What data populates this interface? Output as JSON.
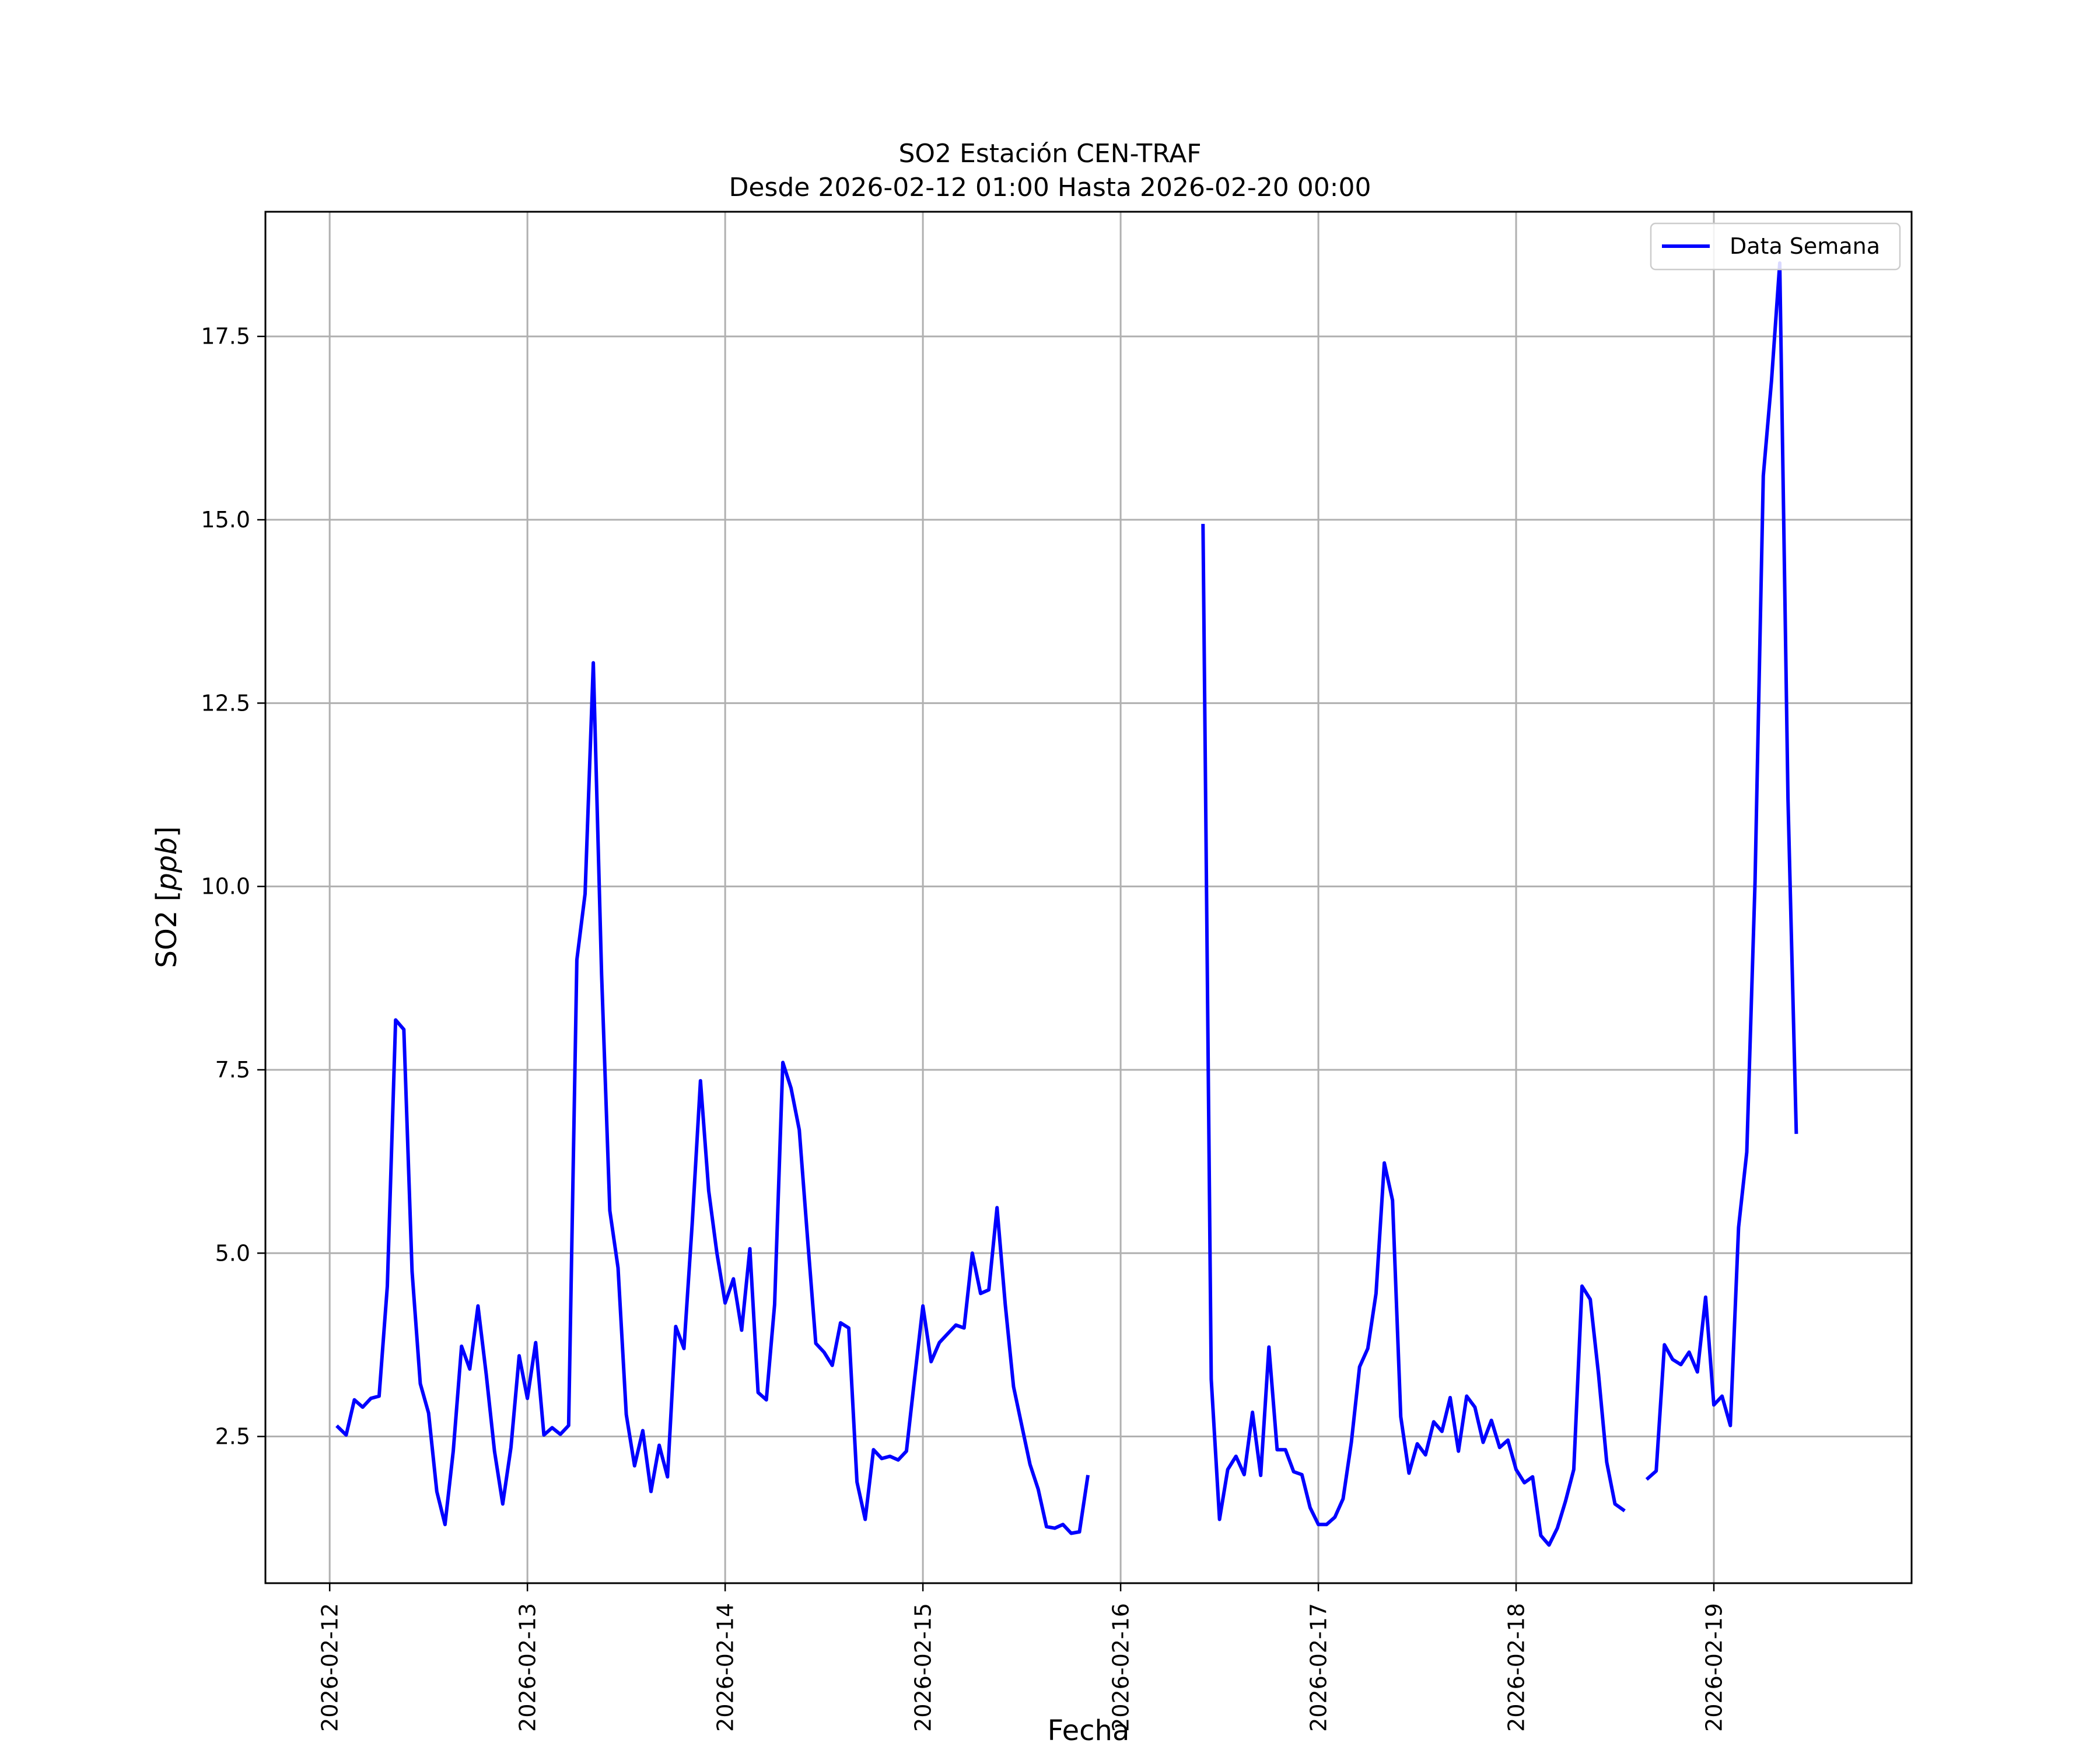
{
  "chart_data": {
    "type": "line",
    "title": "SO2 Estación CEN-TRAF",
    "subtitle": "Desde 2026-02-12 01:00 Hasta 2026-02-20 00:00",
    "xlabel": "Fecha",
    "ylabel_prefix": "SO2 [",
    "ylabel_unit": "ppb",
    "ylabel_suffix": "]",
    "x_ticks": [
      "2026-02-12",
      "2026-02-13",
      "2026-02-14",
      "2026-02-15",
      "2026-02-16",
      "2026-02-17",
      "2026-02-18",
      "2026-02-19"
    ],
    "y_ticks": [
      "2.5",
      "5.0",
      "7.5",
      "10.0",
      "12.5",
      "15.0",
      "17.5"
    ],
    "xlim": [
      "2026-02-11 16:12",
      "2026-02-20 00:00"
    ],
    "ylim": [
      0.5,
      19.2
    ],
    "grid": true,
    "legend": "top-right",
    "series": [
      {
        "name": "Data Semana",
        "color": "#0000ff",
        "segments": [
          [
            [
              "2026-02-12 01:00",
              2.63
            ],
            [
              "2026-02-12 02:00",
              2.52
            ],
            [
              "2026-02-12 03:00",
              3.0
            ],
            [
              "2026-02-12 04:00",
              2.9
            ],
            [
              "2026-02-12 05:00",
              3.02
            ],
            [
              "2026-02-12 06:00",
              3.05
            ],
            [
              "2026-02-12 07:00",
              4.55
            ],
            [
              "2026-02-12 08:00",
              8.18
            ],
            [
              "2026-02-12 09:00",
              8.05
            ],
            [
              "2026-02-12 10:00",
              4.75
            ],
            [
              "2026-02-12 11:00",
              3.22
            ],
            [
              "2026-02-12 12:00",
              2.82
            ],
            [
              "2026-02-12 13:00",
              1.75
            ],
            [
              "2026-02-12 14:00",
              1.3
            ],
            [
              "2026-02-12 15:00",
              2.3
            ],
            [
              "2026-02-12 16:00",
              3.73
            ],
            [
              "2026-02-12 17:00",
              3.42
            ],
            [
              "2026-02-12 18:00",
              4.28
            ],
            [
              "2026-02-12 19:00",
              3.35
            ],
            [
              "2026-02-12 20:00",
              2.3
            ],
            [
              "2026-02-12 21:00",
              1.58
            ],
            [
              "2026-02-12 22:00",
              2.35
            ],
            [
              "2026-02-12 23:00",
              3.6
            ],
            [
              "2026-02-13 00:00",
              3.02
            ],
            [
              "2026-02-13 01:00",
              3.78
            ],
            [
              "2026-02-13 02:00",
              2.52
            ],
            [
              "2026-02-13 03:00",
              2.62
            ],
            [
              "2026-02-13 04:00",
              2.53
            ],
            [
              "2026-02-13 05:00",
              2.65
            ],
            [
              "2026-02-13 06:00",
              9.0
            ],
            [
              "2026-02-13 07:00",
              9.9
            ],
            [
              "2026-02-13 08:00",
              13.05
            ],
            [
              "2026-02-13 09:00",
              8.8
            ],
            [
              "2026-02-13 10:00",
              5.58
            ],
            [
              "2026-02-13 11:00",
              4.8
            ],
            [
              "2026-02-13 12:00",
              2.8
            ],
            [
              "2026-02-13 13:00",
              2.1
            ],
            [
              "2026-02-13 14:00",
              2.58
            ],
            [
              "2026-02-13 15:00",
              1.75
            ],
            [
              "2026-02-13 16:00",
              2.38
            ],
            [
              "2026-02-13 17:00",
              1.95
            ],
            [
              "2026-02-13 18:00",
              4.0
            ],
            [
              "2026-02-13 19:00",
              3.7
            ],
            [
              "2026-02-13 20:00",
              5.4
            ],
            [
              "2026-02-13 21:00",
              7.35
            ],
            [
              "2026-02-13 22:00",
              5.85
            ],
            [
              "2026-02-13 23:00",
              5.0
            ],
            [
              "2026-02-14 00:00",
              4.32
            ],
            [
              "2026-02-14 01:00",
              4.65
            ],
            [
              "2026-02-14 02:00",
              3.95
            ],
            [
              "2026-02-14 03:00",
              5.06
            ],
            [
              "2026-02-14 04:00",
              3.1
            ],
            [
              "2026-02-14 05:00",
              3.0
            ],
            [
              "2026-02-14 06:00",
              4.3
            ],
            [
              "2026-02-14 07:00",
              7.6
            ],
            [
              "2026-02-14 08:00",
              7.25
            ],
            [
              "2026-02-14 09:00",
              6.68
            ],
            [
              "2026-02-14 10:00",
              5.2
            ],
            [
              "2026-02-14 11:00",
              3.77
            ],
            [
              "2026-02-14 12:00",
              3.65
            ],
            [
              "2026-02-14 13:00",
              3.47
            ],
            [
              "2026-02-14 14:00",
              4.05
            ],
            [
              "2026-02-14 15:00",
              3.98
            ],
            [
              "2026-02-14 16:00",
              1.88
            ],
            [
              "2026-02-14 17:00",
              1.37
            ],
            [
              "2026-02-14 18:00",
              2.32
            ],
            [
              "2026-02-14 19:00",
              2.2
            ],
            [
              "2026-02-14 20:00",
              2.23
            ],
            [
              "2026-02-14 21:00",
              2.18
            ],
            [
              "2026-02-14 22:00",
              2.3
            ],
            [
              "2026-02-14 23:00",
              3.3
            ],
            [
              "2026-02-15 00:00",
              4.28
            ],
            [
              "2026-02-15 01:00",
              3.52
            ],
            [
              "2026-02-15 02:00",
              3.78
            ],
            [
              "2026-02-15 03:00",
              3.9
            ],
            [
              "2026-02-15 04:00",
              4.02
            ],
            [
              "2026-02-15 05:00",
              3.98
            ],
            [
              "2026-02-15 06:00",
              5.0
            ],
            [
              "2026-02-15 07:00",
              4.45
            ],
            [
              "2026-02-15 08:00",
              4.5
            ],
            [
              "2026-02-15 09:00",
              5.62
            ],
            [
              "2026-02-15 10:00",
              4.3
            ],
            [
              "2026-02-15 11:00",
              3.18
            ],
            [
              "2026-02-15 12:00",
              2.65
            ],
            [
              "2026-02-15 13:00",
              2.12
            ],
            [
              "2026-02-15 14:00",
              1.78
            ],
            [
              "2026-02-15 15:00",
              1.27
            ],
            [
              "2026-02-15 16:00",
              1.25
            ],
            [
              "2026-02-15 17:00",
              1.3
            ],
            [
              "2026-02-15 18:00",
              1.18
            ],
            [
              "2026-02-15 19:00",
              1.2
            ],
            [
              "2026-02-15 20:00",
              1.95
            ]
          ],
          [
            [
              "2026-02-16 10:00",
              14.92
            ],
            [
              "2026-02-16 11:00",
              3.28
            ],
            [
              "2026-02-16 12:00",
              1.37
            ],
            [
              "2026-02-16 13:00",
              2.05
            ],
            [
              "2026-02-16 14:00",
              2.23
            ],
            [
              "2026-02-16 15:00",
              1.98
            ],
            [
              "2026-02-16 16:00",
              2.83
            ],
            [
              "2026-02-16 17:00",
              1.97
            ],
            [
              "2026-02-16 18:00",
              3.72
            ],
            [
              "2026-02-16 19:00",
              2.32
            ],
            [
              "2026-02-16 20:00",
              2.32
            ],
            [
              "2026-02-16 21:00",
              2.02
            ],
            [
              "2026-02-16 22:00",
              1.98
            ],
            [
              "2026-02-16 23:00",
              1.53
            ],
            [
              "2026-02-17 00:00",
              1.3
            ],
            [
              "2026-02-17 01:00",
              1.3
            ],
            [
              "2026-02-17 02:00",
              1.4
            ],
            [
              "2026-02-17 03:00",
              1.65
            ],
            [
              "2026-02-17 04:00",
              2.42
            ],
            [
              "2026-02-17 05:00",
              3.45
            ],
            [
              "2026-02-17 06:00",
              3.7
            ],
            [
              "2026-02-17 07:00",
              4.45
            ],
            [
              "2026-02-17 08:00",
              6.23
            ],
            [
              "2026-02-17 09:00",
              5.72
            ],
            [
              "2026-02-17 10:00",
              2.77
            ],
            [
              "2026-02-17 11:00",
              2.0
            ],
            [
              "2026-02-17 12:00",
              2.4
            ],
            [
              "2026-02-17 13:00",
              2.25
            ],
            [
              "2026-02-17 14:00",
              2.7
            ],
            [
              "2026-02-17 15:00",
              2.57
            ],
            [
              "2026-02-17 16:00",
              3.03
            ],
            [
              "2026-02-17 17:00",
              2.3
            ],
            [
              "2026-02-17 18:00",
              3.05
            ],
            [
              "2026-02-17 19:00",
              2.9
            ],
            [
              "2026-02-17 20:00",
              2.42
            ],
            [
              "2026-02-17 21:00",
              2.72
            ],
            [
              "2026-02-17 22:00",
              2.35
            ],
            [
              "2026-02-17 23:00",
              2.45
            ],
            [
              "2026-02-18 00:00",
              2.05
            ],
            [
              "2026-02-18 01:00",
              1.87
            ],
            [
              "2026-02-18 02:00",
              1.95
            ],
            [
              "2026-02-18 03:00",
              1.15
            ],
            [
              "2026-02-18 04:00",
              1.02
            ],
            [
              "2026-02-18 05:00",
              1.25
            ],
            [
              "2026-02-18 06:00",
              1.62
            ],
            [
              "2026-02-18 07:00",
              2.05
            ],
            [
              "2026-02-18 08:00",
              4.55
            ],
            [
              "2026-02-18 09:00",
              4.37
            ],
            [
              "2026-02-18 10:00",
              3.35
            ],
            [
              "2026-02-18 11:00",
              2.15
            ],
            [
              "2026-02-18 12:00",
              1.58
            ],
            [
              "2026-02-18 13:00",
              1.5
            ]
          ],
          [
            [
              "2026-02-18 16:00",
              1.93
            ],
            [
              "2026-02-18 17:00",
              2.03
            ],
            [
              "2026-02-18 18:00",
              3.75
            ],
            [
              "2026-02-18 19:00",
              3.55
            ],
            [
              "2026-02-18 20:00",
              3.48
            ],
            [
              "2026-02-18 21:00",
              3.65
            ],
            [
              "2026-02-18 22:00",
              3.38
            ],
            [
              "2026-02-18 23:00",
              4.4
            ],
            [
              "2026-02-19 00:00",
              2.93
            ],
            [
              "2026-02-19 01:00",
              3.05
            ],
            [
              "2026-02-19 02:00",
              2.65
            ],
            [
              "2026-02-19 03:00",
              5.35
            ],
            [
              "2026-02-19 04:00",
              6.38
            ],
            [
              "2026-02-19 05:00",
              10.05
            ],
            [
              "2026-02-19 06:00",
              15.6
            ],
            [
              "2026-02-19 07:00",
              16.9
            ],
            [
              "2026-02-19 08:00",
              18.5
            ],
            [
              "2026-02-19 09:00",
              11.2
            ],
            [
              "2026-02-19 10:00",
              6.65
            ]
          ]
        ]
      }
    ]
  }
}
